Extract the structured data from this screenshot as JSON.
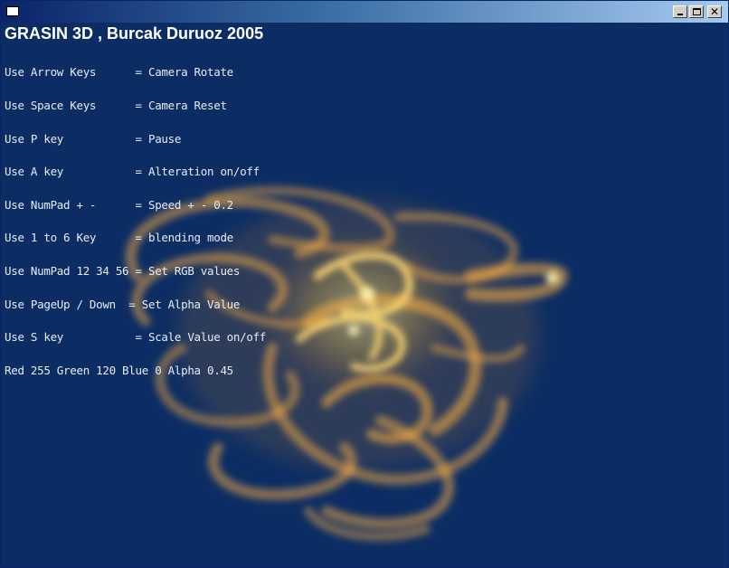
{
  "window": {
    "title": "",
    "icon": "app-window-icon",
    "controls": {
      "minimize": "minimize-icon",
      "maximize": "maximize-icon",
      "close": "close-icon",
      "close_glyph": "✕"
    }
  },
  "overlay": {
    "title": "GRASIN 3D , Burcak Duruoz 2005",
    "help_lines": [
      "Use Arrow Keys      = Camera Rotate",
      "Use Space Keys      = Camera Reset",
      "Use P key           = Pause",
      "Use A key           = Alteration on/off",
      "Use NumPad + -      = Speed + - 0.2",
      "Use 1 to 6 Key      = blending mode",
      "Use NumPad 12 34 56 = Set RGB values",
      "Use PageUp / Down  = Set Alpha Value",
      "Use S key           = Scale Value on/off",
      "Red 255 Green 120 Blue 0 Alpha 0.45"
    ]
  },
  "render": {
    "background_color": "#0c2d63",
    "particle_color": "#ffb040",
    "rgba": {
      "red": 255,
      "green": 120,
      "blue": 0,
      "alpha": 0.45
    }
  }
}
